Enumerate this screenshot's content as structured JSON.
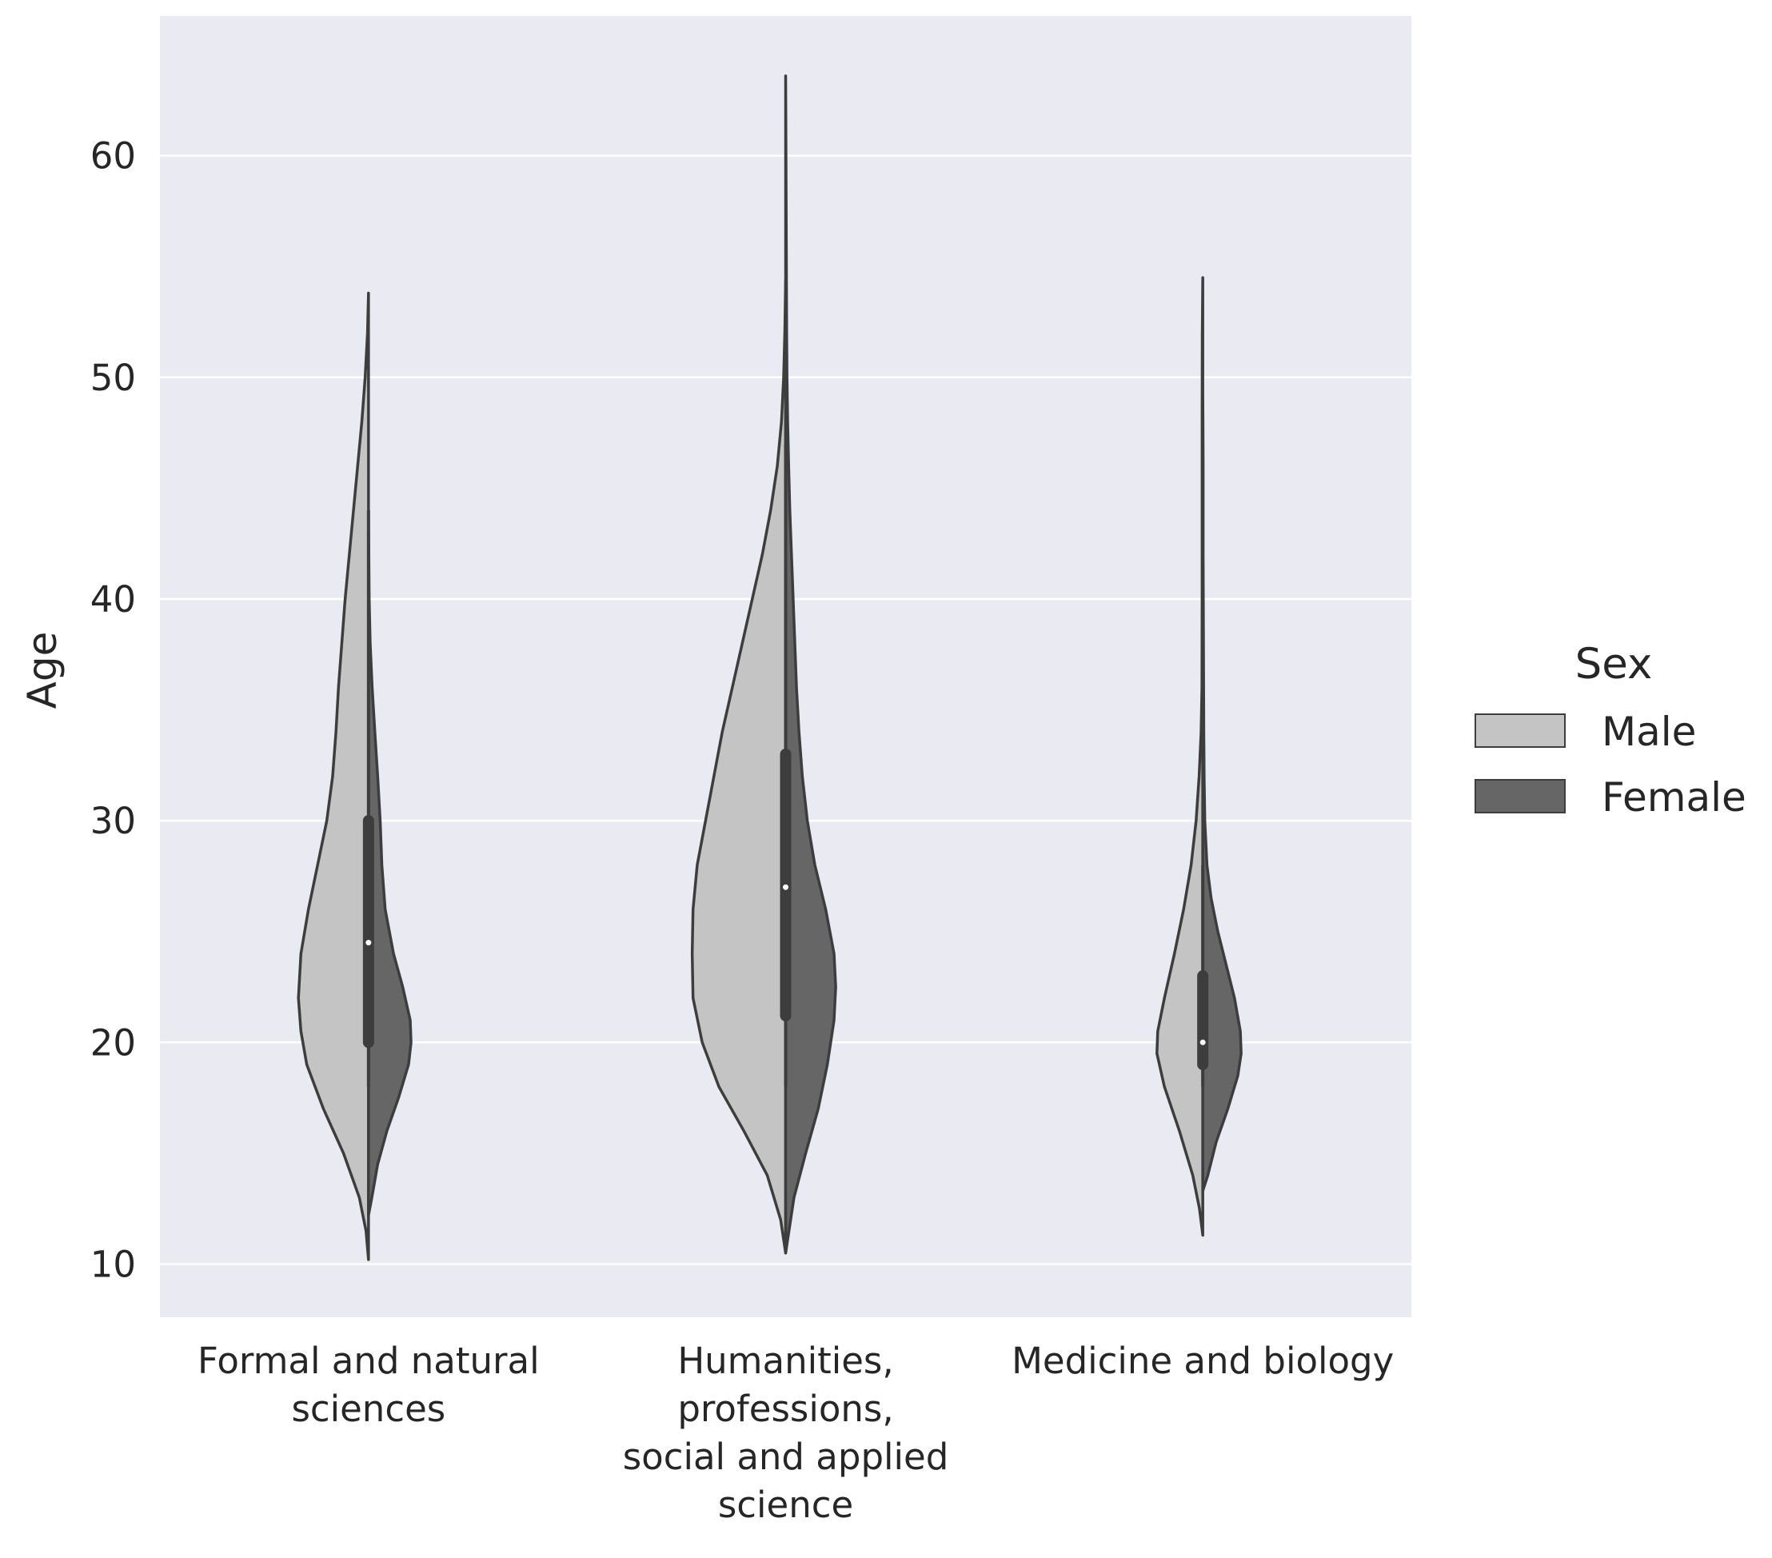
{
  "chart_data": {
    "type": "violin",
    "split": true,
    "title": "",
    "xlabel": "",
    "ylabel": "Age",
    "ylim": [
      7.6,
      66.3
    ],
    "yticks": [
      10,
      20,
      30,
      40,
      50,
      60
    ],
    "grid": true,
    "legend": {
      "title": "Sex",
      "position": "right",
      "entries": [
        {
          "name": "Male",
          "color": "#c4c4c4"
        },
        {
          "name": "Female",
          "color": "#666666"
        }
      ]
    },
    "categories": [
      {
        "lines": [
          "Formal and natural",
          "sciences"
        ]
      },
      {
        "lines": [
          "Humanities,",
          "professions,",
          "social and applied",
          "science"
        ]
      },
      {
        "lines": [
          "Medicine and biology"
        ]
      }
    ],
    "series": [
      {
        "name": "Male",
        "color": "#c4c4c4",
        "violins": [
          [
            [
              10.2,
              0.0
            ],
            [
              11.5,
              0.015
            ],
            [
              13.0,
              0.055
            ],
            [
              15.0,
              0.15
            ],
            [
              17.0,
              0.27
            ],
            [
              19.0,
              0.37
            ],
            [
              20.5,
              0.405
            ],
            [
              22.0,
              0.42
            ],
            [
              24.0,
              0.405
            ],
            [
              26.0,
              0.36
            ],
            [
              28.0,
              0.305
            ],
            [
              30.0,
              0.25
            ],
            [
              32.0,
              0.215
            ],
            [
              34.0,
              0.195
            ],
            [
              36.0,
              0.18
            ],
            [
              38.0,
              0.16
            ],
            [
              40.0,
              0.14
            ],
            [
              42.0,
              0.115
            ],
            [
              44.0,
              0.09
            ],
            [
              46.0,
              0.065
            ],
            [
              48.0,
              0.04
            ],
            [
              50.0,
              0.02
            ],
            [
              52.0,
              0.006
            ],
            [
              53.8,
              0.0
            ]
          ],
          [
            [
              10.5,
              0.0
            ],
            [
              12.0,
              0.03
            ],
            [
              14.0,
              0.11
            ],
            [
              16.0,
              0.25
            ],
            [
              18.0,
              0.4
            ],
            [
              20.0,
              0.5
            ],
            [
              22.0,
              0.555
            ],
            [
              24.0,
              0.56
            ],
            [
              26.0,
              0.555
            ],
            [
              28.0,
              0.53
            ],
            [
              30.0,
              0.48
            ],
            [
              32.0,
              0.43
            ],
            [
              34.0,
              0.38
            ],
            [
              36.0,
              0.32
            ],
            [
              38.0,
              0.26
            ],
            [
              40.0,
              0.2
            ],
            [
              42.0,
              0.14
            ],
            [
              44.0,
              0.09
            ],
            [
              46.0,
              0.05
            ],
            [
              48.0,
              0.025
            ],
            [
              50.0,
              0.012
            ],
            [
              52.0,
              0.005
            ],
            [
              54.4,
              0.0
            ]
          ],
          [
            [
              11.3,
              0.0
            ],
            [
              12.5,
              0.02
            ],
            [
              14.0,
              0.06
            ],
            [
              16.0,
              0.14
            ],
            [
              18.0,
              0.23
            ],
            [
              19.5,
              0.275
            ],
            [
              20.5,
              0.27
            ],
            [
              22.0,
              0.23
            ],
            [
              24.0,
              0.17
            ],
            [
              26.0,
              0.115
            ],
            [
              28.0,
              0.07
            ],
            [
              30.0,
              0.04
            ],
            [
              32.0,
              0.022
            ],
            [
              34.0,
              0.01
            ],
            [
              36.0,
              0.005
            ],
            [
              40.0,
              0.004
            ],
            [
              44.0,
              0.004
            ],
            [
              48.0,
              0.004
            ],
            [
              52.0,
              0.003
            ],
            [
              54.5,
              0.0
            ]
          ]
        ]
      },
      {
        "name": "Female",
        "color": "#666666",
        "violins": [
          [
            [
              12.2,
              0.0
            ],
            [
              13.0,
              0.02
            ],
            [
              14.5,
              0.055
            ],
            [
              16.0,
              0.11
            ],
            [
              17.5,
              0.18
            ],
            [
              19.0,
              0.24
            ],
            [
              20.0,
              0.255
            ],
            [
              21.0,
              0.25
            ],
            [
              22.5,
              0.205
            ],
            [
              24.0,
              0.15
            ],
            [
              26.0,
              0.1
            ],
            [
              28.0,
              0.08
            ],
            [
              30.0,
              0.07
            ],
            [
              32.0,
              0.055
            ],
            [
              34.0,
              0.038
            ],
            [
              36.0,
              0.022
            ],
            [
              38.0,
              0.01
            ],
            [
              40.0,
              0.004
            ],
            [
              42.0,
              0.002
            ],
            [
              43.5,
              0.0
            ]
          ],
          [
            [
              10.5,
              0.0
            ],
            [
              11.5,
              0.02
            ],
            [
              13.0,
              0.05
            ],
            [
              15.0,
              0.12
            ],
            [
              17.0,
              0.195
            ],
            [
              19.0,
              0.25
            ],
            [
              21.0,
              0.29
            ],
            [
              22.5,
              0.3
            ],
            [
              24.0,
              0.29
            ],
            [
              26.0,
              0.24
            ],
            [
              28.0,
              0.175
            ],
            [
              30.0,
              0.13
            ],
            [
              32.0,
              0.1
            ],
            [
              34.0,
              0.08
            ],
            [
              36.0,
              0.065
            ],
            [
              38.0,
              0.055
            ],
            [
              40.0,
              0.045
            ],
            [
              42.0,
              0.035
            ],
            [
              44.0,
              0.025
            ],
            [
              46.0,
              0.018
            ],
            [
              48.0,
              0.012
            ],
            [
              50.0,
              0.008
            ],
            [
              52.0,
              0.006
            ],
            [
              54.0,
              0.005
            ],
            [
              56.0,
              0.004
            ],
            [
              58.0,
              0.003
            ],
            [
              60.0,
              0.002
            ],
            [
              63.6,
              0.0
            ]
          ],
          [
            [
              13.3,
              0.0
            ],
            [
              14.0,
              0.03
            ],
            [
              15.5,
              0.08
            ],
            [
              17.0,
              0.15
            ],
            [
              18.5,
              0.21
            ],
            [
              19.5,
              0.23
            ],
            [
              20.5,
              0.225
            ],
            [
              22.0,
              0.19
            ],
            [
              23.5,
              0.14
            ],
            [
              25.0,
              0.09
            ],
            [
              26.5,
              0.05
            ],
            [
              28.0,
              0.025
            ],
            [
              30.0,
              0.012
            ],
            [
              32.0,
              0.008
            ],
            [
              34.0,
              0.006
            ],
            [
              36.0,
              0.005
            ],
            [
              38.0,
              0.004
            ],
            [
              40.0,
              0.003
            ],
            [
              42.0,
              0.002
            ],
            [
              44.0,
              0.002
            ],
            [
              46.0,
              0.002
            ],
            [
              48.0,
              0.001
            ],
            [
              49.0,
              0.0
            ]
          ]
        ]
      }
    ],
    "box_stats": [
      {
        "q1": 20.0,
        "median": 24.5,
        "q3": 30.0,
        "whisker_low": 18.0,
        "whisker_high": 44.0
      },
      {
        "q1": 21.2,
        "median": 27.0,
        "q3": 33.0,
        "whisker_low": 18.0,
        "whisker_high": 47.0
      },
      {
        "q1": 19.0,
        "median": 20.0,
        "q3": 23.0,
        "whisker_low": 18.0,
        "whisker_high": 28.0
      }
    ],
    "colors": {
      "plot_background": "#eaeaf2",
      "grid": "#ffffff",
      "outline": "#3d3d3d",
      "box": "#3d3d3d",
      "median": "#ffffff"
    }
  }
}
